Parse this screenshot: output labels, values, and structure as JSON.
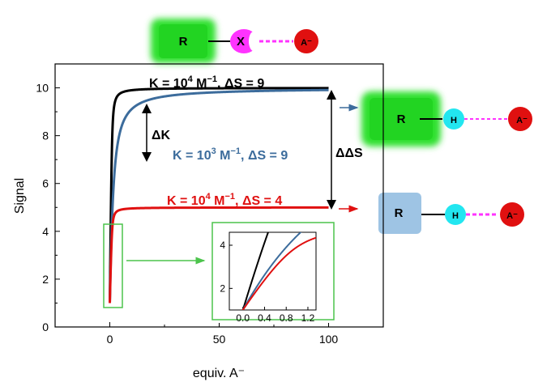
{
  "chart_data": {
    "type": "line",
    "xlabel": "equiv. A⁻",
    "ylabel": "Signal",
    "xlim": [
      -25,
      125
    ],
    "ylim": [
      0,
      11
    ],
    "x_ticks": [
      "0",
      "50",
      "100"
    ],
    "y_ticks": [
      "0",
      "2",
      "4",
      "6",
      "8",
      "10"
    ],
    "grid": false,
    "series": [
      {
        "name": "",
        "label_parts": [
          "K = 10",
          "4",
          " M",
          "−1",
          ", ΔS = 9"
        ],
        "color": "#000000",
        "K": 10000,
        "dS": 9,
        "y0": 1,
        "x": [
          0,
          0.5,
          1,
          2,
          3,
          5,
          10,
          20,
          40,
          60,
          80,
          100
        ],
        "y": [
          1,
          4.1,
          5.6,
          7.2,
          8.0,
          8.8,
          9.4,
          9.7,
          9.85,
          9.9,
          9.92,
          9.93
        ]
      },
      {
        "name": "",
        "label_parts": [
          "K = 10",
          "3",
          " M",
          "−1",
          ", ΔS = 9"
        ],
        "color": "#3c6c9c",
        "K": 1000,
        "dS": 9,
        "y0": 1,
        "x": [
          0,
          1,
          2,
          3,
          5,
          10,
          20,
          30,
          40,
          60,
          80,
          100
        ],
        "y": [
          1,
          1.8,
          2.5,
          3.1,
          4.1,
          5.6,
          6.9,
          7.5,
          7.9,
          8.4,
          8.6,
          8.8
        ]
      },
      {
        "name": "",
        "label_parts": [
          "K = 10",
          "4",
          " M",
          "−1",
          ", ΔS = 4"
        ],
        "color": "#e01010",
        "K": 10000,
        "dS": 4,
        "y0": 1,
        "x": [
          0,
          0.5,
          1,
          2,
          3,
          5,
          10,
          20,
          40,
          60,
          80,
          100
        ],
        "y": [
          1,
          2.4,
          3.1,
          3.8,
          4.1,
          4.5,
          4.7,
          4.85,
          4.93,
          4.95,
          4.96,
          4.97
        ]
      }
    ],
    "inset": {
      "xlim": [
        -0.25,
        1.35
      ],
      "ylim": [
        1,
        4.6
      ],
      "x_ticks": [
        "0.0",
        "0.4",
        "0.8",
        "1.2"
      ],
      "y_ticks": [
        "2",
        "4"
      ]
    },
    "annotations": {
      "delta_k": "ΔK",
      "delta_delta_s": "ΔΔS"
    }
  },
  "scheme": {
    "top": {
      "receptor": "R",
      "group": "X",
      "anion": "A⁻"
    },
    "middle": {
      "receptor": "R",
      "group": "H",
      "anion": "A⁻"
    },
    "bottom": {
      "receptor": "R",
      "group": "H",
      "anion": "A⁻"
    }
  },
  "colors": {
    "black": "#000000",
    "blue": "#3c6c9c",
    "red": "#e01010",
    "green": "#2ee02e",
    "magenta": "#ff33ff",
    "cyan": "#22e6f0",
    "light_blue": "#9ec4e4",
    "inset_frame": "#4cc44c"
  }
}
